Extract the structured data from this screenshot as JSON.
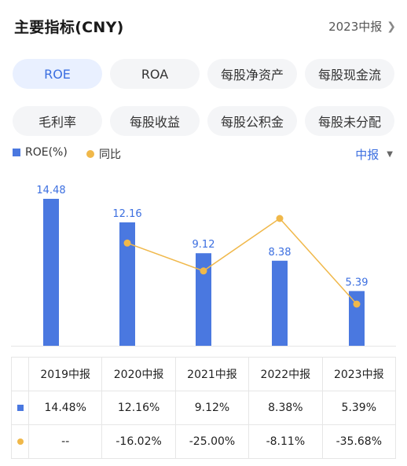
{
  "header": {
    "title": "主要指标(CNY)",
    "report_label": "2023中报"
  },
  "tabs": [
    {
      "label": "ROE",
      "active": true
    },
    {
      "label": "ROA",
      "active": false
    },
    {
      "label": "每股净资产",
      "active": false
    },
    {
      "label": "每股现金流",
      "active": false
    },
    {
      "label": "毛利率",
      "active": false
    },
    {
      "label": "每股收益",
      "active": false
    },
    {
      "label": "每股公积金",
      "active": false
    },
    {
      "label": "每股未分配",
      "active": false
    }
  ],
  "legend": {
    "bar_label": "ROE(%)",
    "line_label": "同比",
    "period": "中报"
  },
  "colors": {
    "bar": "#4a78e0",
    "line": "#f0b84a",
    "accent": "#3c6fe0",
    "growth": "#22a06b"
  },
  "chart_data": {
    "type": "bar",
    "categories": [
      "2019中报",
      "2020中报",
      "2021中报",
      "2022中报",
      "2023中报"
    ],
    "series": [
      {
        "name": "ROE(%)",
        "type": "bar",
        "values": [
          14.48,
          12.16,
          9.12,
          8.38,
          5.39
        ]
      },
      {
        "name": "同比",
        "type": "line",
        "values": [
          null,
          -16.02,
          -25.0,
          -8.11,
          -35.68
        ]
      }
    ],
    "data_labels": [
      "14.48",
      "12.16",
      "9.12",
      "8.38",
      "5.39"
    ]
  },
  "table": {
    "headers": [
      "2019中报",
      "2020中报",
      "2021中报",
      "2022中报",
      "2023中报"
    ],
    "roe_row": [
      "14.48%",
      "12.16%",
      "9.12%",
      "8.38%",
      "5.39%"
    ],
    "yoy_row": [
      "--",
      "-16.02%",
      "-25.00%",
      "-8.11%",
      "-35.68%"
    ]
  }
}
